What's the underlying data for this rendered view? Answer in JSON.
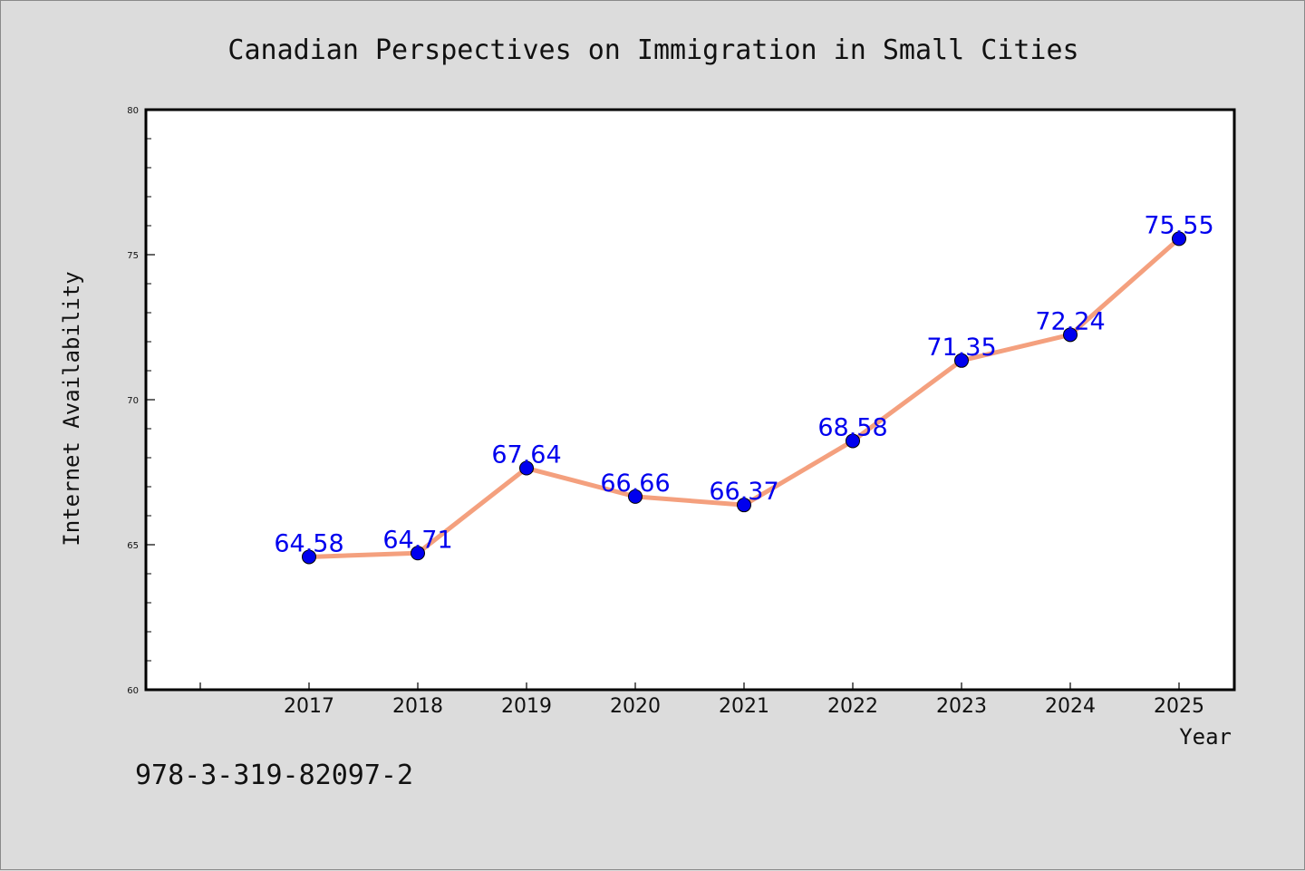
{
  "chart_data": {
    "type": "line",
    "title": "Canadian Perspectives on Immigration in Small Cities",
    "xlabel": "Year",
    "ylabel": "Internet Availability",
    "categories": [
      "2017",
      "2018",
      "2019",
      "2020",
      "2021",
      "2022",
      "2023",
      "2024",
      "2025"
    ],
    "values": [
      64.58,
      64.71,
      67.64,
      66.66,
      66.37,
      68.58,
      71.35,
      72.24,
      75.55
    ],
    "data_labels": [
      "64.58",
      "64.71",
      "67.64",
      "66.66",
      "66.37",
      "68.58",
      "71.35",
      "72.24",
      "75.55"
    ],
    "ylim": [
      60,
      80
    ],
    "y_ticks": [
      "60",
      "65",
      "70",
      "75",
      "80"
    ],
    "grid": false,
    "line_color": "#f4a07e",
    "marker_color": "#0000ee",
    "label_color": "#0000ee",
    "background_color": "#dcdcdc",
    "plot_background": "#ffffff"
  },
  "annotation": {
    "isbn": "978-3-319-82097-2"
  }
}
